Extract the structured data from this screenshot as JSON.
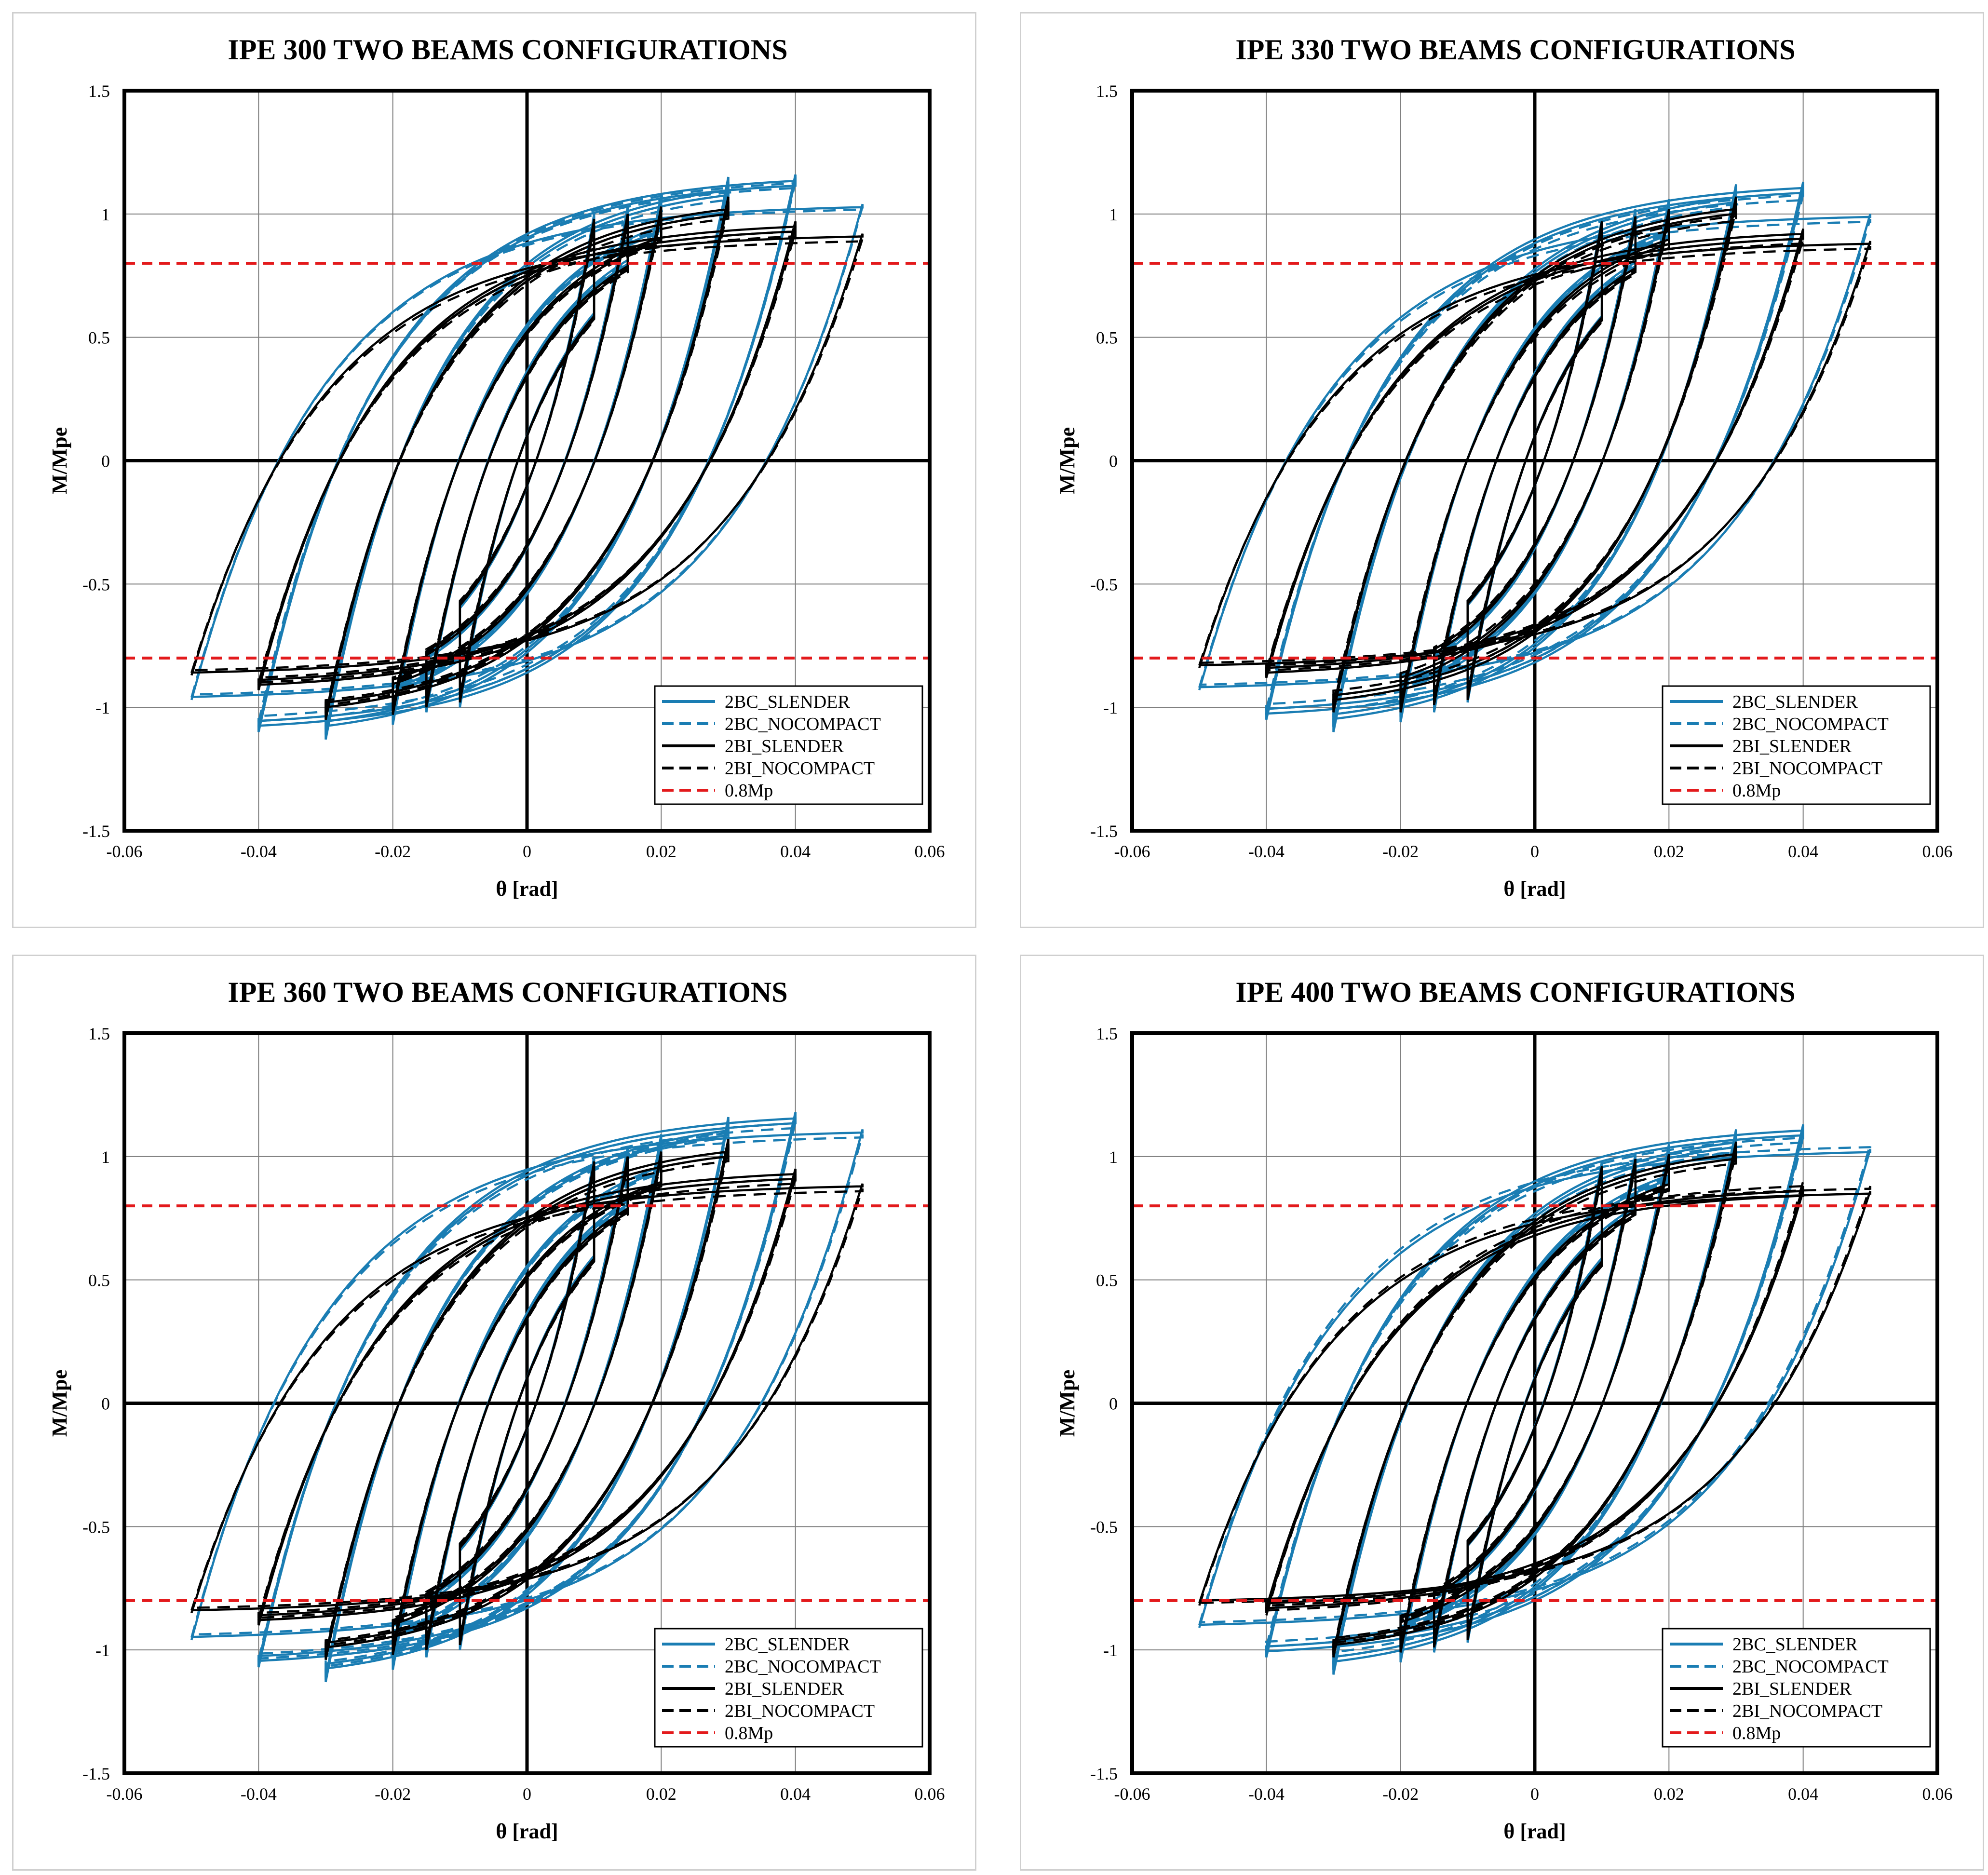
{
  "colors": {
    "blue": "#1a7db3",
    "black": "#000000",
    "red": "#e31a1c",
    "grid": "#7f7f7f"
  },
  "chart_data": [
    {
      "type": "line",
      "title": "IPE 300 TWO BEAMS CONFIGURATIONS",
      "xlabel": "θ [rad]",
      "ylabel": "M/Mpe",
      "xlim": [
        -0.06,
        0.06
      ],
      "ylim": [
        -1.5,
        1.5
      ],
      "xticks": [
        "-0.06",
        "-0.04",
        "-0.02",
        "0",
        "0.02",
        "0.04",
        "0.06"
      ],
      "yticks": [
        "1.5",
        "1",
        "0.5",
        "0",
        "-0.5",
        "-1",
        "-1.5"
      ],
      "legend_position": "bottom-right",
      "series": [
        {
          "name": "2BC_SLENDER",
          "color": "blue",
          "dash": "solid",
          "cycles": [
            [
              0.01,
              1.0,
              -1.0
            ],
            [
              0.015,
              1.03,
              -1.02
            ],
            [
              0.02,
              1.08,
              -1.07
            ],
            [
              0.03,
              1.15,
              -1.13
            ],
            [
              0.04,
              1.16,
              -1.1
            ]
          ],
          "tail": [
            0.05,
            1.04,
            -0.97
          ]
        },
        {
          "name": "2BC_NOCOMPACT",
          "color": "blue",
          "dash": "dashed",
          "cycles": [
            [
              0.01,
              0.99,
              -0.99
            ],
            [
              0.015,
              1.02,
              -1.01
            ],
            [
              0.02,
              1.07,
              -1.06
            ],
            [
              0.03,
              1.13,
              -1.11
            ],
            [
              0.04,
              1.15,
              -1.08
            ]
          ],
          "tail": [
            0.05,
            1.03,
            -0.96
          ]
        },
        {
          "name": "2BI_SLENDER",
          "color": "black",
          "dash": "solid",
          "cycles": [
            [
              0.01,
              0.98,
              -0.98
            ],
            [
              0.015,
              1.0,
              -1.0
            ],
            [
              0.02,
              1.03,
              -1.03
            ],
            [
              0.03,
              1.07,
              -1.05
            ],
            [
              0.04,
              0.97,
              -0.93
            ]
          ],
          "tail": [
            0.05,
            0.92,
            -0.87
          ]
        },
        {
          "name": "2BI_NOCOMPACT",
          "color": "black",
          "dash": "dashed",
          "cycles": [
            [
              0.01,
              0.97,
              -0.97
            ],
            [
              0.015,
              0.99,
              -0.99
            ],
            [
              0.02,
              1.02,
              -1.02
            ],
            [
              0.03,
              1.05,
              -1.04
            ],
            [
              0.04,
              0.95,
              -0.92
            ]
          ],
          "tail": [
            0.05,
            0.9,
            -0.86
          ]
        },
        {
          "name": "0.8Mp",
          "color": "red",
          "dash": "dashed",
          "level": 0.8
        }
      ]
    },
    {
      "type": "line",
      "title": "IPE 330 TWO BEAMS CONFIGURATIONS",
      "xlabel": "θ [rad]",
      "ylabel": "M/Mpe",
      "xlim": [
        -0.06,
        0.06
      ],
      "ylim": [
        -1.5,
        1.5
      ],
      "xticks": [
        "-0.06",
        "-0.04",
        "-0.02",
        "0",
        "0.02",
        "0.04",
        "0.06"
      ],
      "yticks": [
        "1.5",
        "1",
        "0.5",
        "0",
        "-0.5",
        "-1",
        "-1.5"
      ],
      "legend_position": "bottom-right",
      "series": [
        {
          "name": "2BC_SLENDER",
          "color": "blue",
          "dash": "solid",
          "cycles": [
            [
              0.01,
              0.98,
              -0.98
            ],
            [
              0.015,
              1.02,
              -1.02
            ],
            [
              0.02,
              1.06,
              -1.06
            ],
            [
              0.03,
              1.12,
              -1.1
            ],
            [
              0.04,
              1.13,
              -1.05
            ]
          ],
          "tail": [
            0.05,
            1.0,
            -0.93
          ]
        },
        {
          "name": "2BC_NOCOMPACT",
          "color": "blue",
          "dash": "dashed",
          "cycles": [
            [
              0.01,
              0.97,
              -0.97
            ],
            [
              0.015,
              1.01,
              -1.01
            ],
            [
              0.02,
              1.05,
              -1.05
            ],
            [
              0.03,
              1.1,
              -1.08
            ],
            [
              0.04,
              1.1,
              -1.03
            ]
          ],
          "tail": [
            0.05,
            0.98,
            -0.92
          ]
        },
        {
          "name": "2BI_SLENDER",
          "color": "black",
          "dash": "solid",
          "cycles": [
            [
              0.01,
              0.97,
              -0.97
            ],
            [
              0.015,
              0.99,
              -0.99
            ],
            [
              0.02,
              1.02,
              -1.02
            ],
            [
              0.03,
              1.07,
              -1.02
            ],
            [
              0.04,
              0.94,
              -0.88
            ]
          ],
          "tail": [
            0.05,
            0.89,
            -0.84
          ]
        },
        {
          "name": "2BI_NOCOMPACT",
          "color": "black",
          "dash": "dashed",
          "cycles": [
            [
              0.01,
              0.96,
              -0.96
            ],
            [
              0.015,
              0.98,
              -0.98
            ],
            [
              0.02,
              1.0,
              -1.0
            ],
            [
              0.03,
              1.04,
              -1.0
            ],
            [
              0.04,
              0.92,
              -0.87
            ]
          ],
          "tail": [
            0.05,
            0.87,
            -0.83
          ]
        },
        {
          "name": "0.8Mp",
          "color": "red",
          "dash": "dashed",
          "level": 0.8
        }
      ]
    },
    {
      "type": "line",
      "title": "IPE 360 TWO BEAMS CONFIGURATIONS",
      "xlabel": "θ [rad]",
      "ylabel": "M/Mpe",
      "xlim": [
        -0.06,
        0.06
      ],
      "ylim": [
        -1.5,
        1.5
      ],
      "xticks": [
        "-0.06",
        "-0.04",
        "-0.02",
        "0",
        "0.02",
        "0.04",
        "0.06"
      ],
      "yticks": [
        "1.5",
        "1",
        "0.5",
        "0",
        "-0.5",
        "-1",
        "-1.5"
      ],
      "legend_position": "bottom-right",
      "series": [
        {
          "name": "2BC_SLENDER",
          "color": "blue",
          "dash": "solid",
          "cycles": [
            [
              0.01,
              1.0,
              -1.0
            ],
            [
              0.015,
              1.04,
              -1.03
            ],
            [
              0.02,
              1.09,
              -1.08
            ],
            [
              0.03,
              1.16,
              -1.13
            ],
            [
              0.04,
              1.18,
              -1.07
            ]
          ],
          "tail": [
            0.05,
            1.11,
            -0.96
          ]
        },
        {
          "name": "2BC_NOCOMPACT",
          "color": "blue",
          "dash": "dashed",
          "cycles": [
            [
              0.01,
              0.99,
              -0.99
            ],
            [
              0.015,
              1.03,
              -1.02
            ],
            [
              0.02,
              1.08,
              -1.07
            ],
            [
              0.03,
              1.15,
              -1.12
            ],
            [
              0.04,
              1.16,
              -1.06
            ]
          ],
          "tail": [
            0.05,
            1.09,
            -0.95
          ]
        },
        {
          "name": "2BI_SLENDER",
          "color": "black",
          "dash": "solid",
          "cycles": [
            [
              0.01,
              0.98,
              -0.98
            ],
            [
              0.015,
              1.0,
              -1.0
            ],
            [
              0.02,
              1.02,
              -1.02
            ],
            [
              0.03,
              1.07,
              -1.04
            ],
            [
              0.04,
              0.95,
              -0.9
            ]
          ],
          "tail": [
            0.05,
            0.89,
            -0.85
          ]
        },
        {
          "name": "2BI_NOCOMPACT",
          "color": "black",
          "dash": "dashed",
          "cycles": [
            [
              0.01,
              0.97,
              -0.97
            ],
            [
              0.015,
              0.99,
              -0.99
            ],
            [
              0.02,
              1.01,
              -1.01
            ],
            [
              0.03,
              1.05,
              -1.03
            ],
            [
              0.04,
              0.93,
              -0.89
            ]
          ],
          "tail": [
            0.05,
            0.87,
            -0.84
          ]
        },
        {
          "name": "0.8Mp",
          "color": "red",
          "dash": "dashed",
          "level": 0.8
        }
      ]
    },
    {
      "type": "line",
      "title": "IPE 400 TWO BEAMS CONFIGURATIONS",
      "xlabel": "θ [rad]",
      "ylabel": "M/Mpe",
      "xlim": [
        -0.06,
        0.06
      ],
      "ylim": [
        -1.5,
        1.5
      ],
      "xticks": [
        "-0.06",
        "-0.04",
        "-0.02",
        "0",
        "0.02",
        "0.04",
        "0.06"
      ],
      "yticks": [
        "1.5",
        "1",
        "0.5",
        "0",
        "-0.5",
        "-1",
        "-1.5"
      ],
      "legend_position": "bottom-right",
      "series": [
        {
          "name": "2BC_SLENDER",
          "color": "blue",
          "dash": "solid",
          "cycles": [
            [
              0.01,
              0.98,
              -0.97
            ],
            [
              0.015,
              1.01,
              -1.01
            ],
            [
              0.02,
              1.05,
              -1.05
            ],
            [
              0.03,
              1.11,
              -1.1
            ],
            [
              0.04,
              1.13,
              -1.03
            ]
          ],
          "tail": [
            0.05,
            1.03,
            -0.91
          ]
        },
        {
          "name": "2BC_NOCOMPACT",
          "color": "blue",
          "dash": "dashed",
          "cycles": [
            [
              0.01,
              0.97,
              -0.96
            ],
            [
              0.015,
              1.0,
              -1.0
            ],
            [
              0.02,
              1.04,
              -1.04
            ],
            [
              0.03,
              1.09,
              -1.08
            ],
            [
              0.04,
              1.1,
              -1.01
            ]
          ],
          "tail": [
            0.05,
            1.05,
            -0.9
          ]
        },
        {
          "name": "2BI_SLENDER",
          "color": "black",
          "dash": "solid",
          "cycles": [
            [
              0.01,
              0.96,
              -0.96
            ],
            [
              0.015,
              0.99,
              -0.99
            ],
            [
              0.02,
              1.01,
              -1.01
            ],
            [
              0.03,
              1.06,
              -1.03
            ],
            [
              0.04,
              0.88,
              -0.85
            ]
          ],
          "tail": [
            0.05,
            0.86,
            -0.81
          ]
        },
        {
          "name": "2BI_NOCOMPACT",
          "color": "black",
          "dash": "dashed",
          "cycles": [
            [
              0.01,
              0.95,
              -0.95
            ],
            [
              0.015,
              0.98,
              -0.98
            ],
            [
              0.02,
              1.0,
              -1.0
            ],
            [
              0.03,
              1.04,
              -1.02
            ],
            [
              0.04,
              0.9,
              -0.86
            ]
          ],
          "tail": [
            0.05,
            0.88,
            -0.82
          ]
        },
        {
          "name": "0.8Mp",
          "color": "red",
          "dash": "dashed",
          "level": 0.8
        }
      ]
    }
  ]
}
